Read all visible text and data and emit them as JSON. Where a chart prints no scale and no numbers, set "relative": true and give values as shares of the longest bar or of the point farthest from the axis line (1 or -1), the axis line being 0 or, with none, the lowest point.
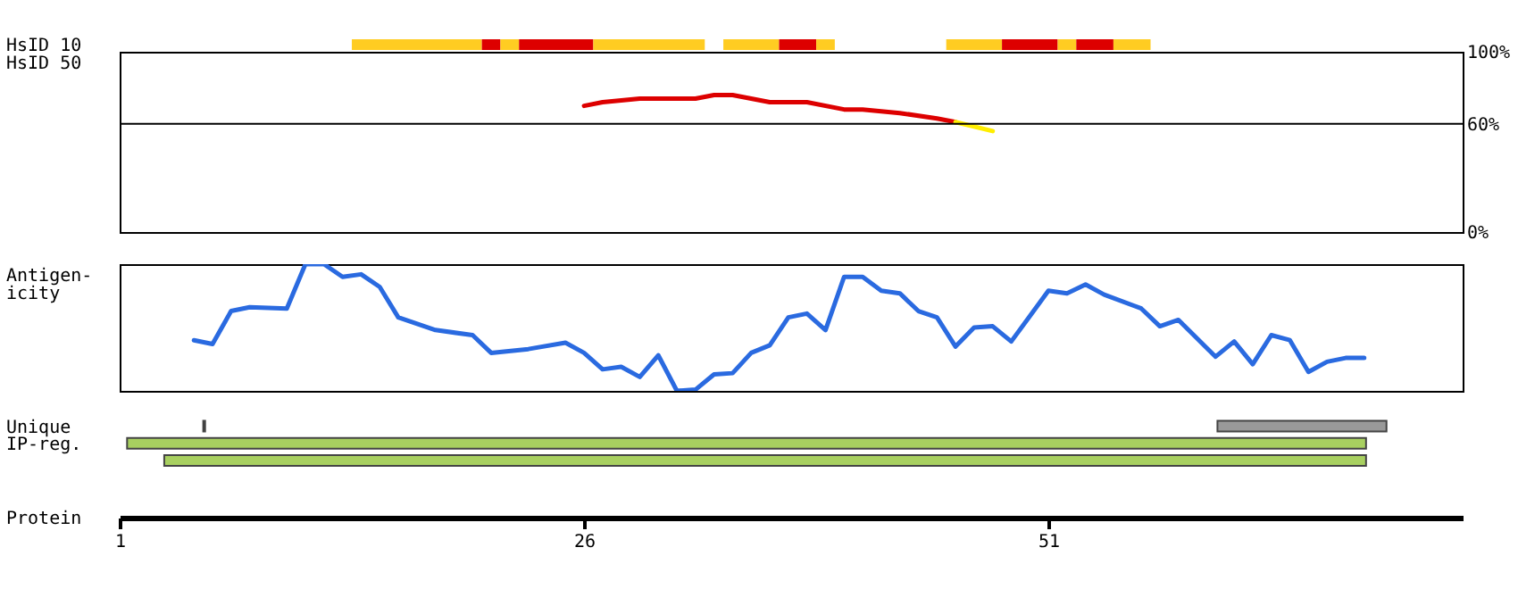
{
  "chart_data": [
    {
      "type": "line",
      "ylabel": "HsID 50",
      "xlim": [
        1,
        73.3
      ],
      "ylim": [
        0,
        100
      ],
      "yticks": [
        {
          "value": 0,
          "label": "0%"
        },
        {
          "value": 60,
          "label": "60%"
        },
        {
          "value": 100,
          "label": "100%"
        }
      ],
      "tick_labels": "y",
      "ref_lines": [
        {
          "axis": "y",
          "value": 60
        }
      ],
      "series": [
        {
          "color": "#dd0000",
          "x": [
            26,
            27,
            29,
            32,
            33,
            34,
            36,
            38,
            40,
            41,
            43,
            45,
            46
          ],
          "values": [
            70,
            72,
            74,
            74,
            76,
            76,
            72,
            72,
            68,
            68,
            66,
            63,
            61
          ]
        },
        {
          "color": "#ffee00",
          "x": [
            46,
            48
          ],
          "values": [
            61,
            56
          ]
        }
      ]
    },
    {
      "type": "line",
      "relative": true,
      "ylabel": "Antigen-\nicity",
      "xlim": [
        1,
        73.3
      ],
      "tick_labels": false,
      "x": [
        5,
        6,
        7,
        8,
        10,
        11,
        12,
        13,
        14,
        15,
        16,
        18,
        20,
        21,
        23,
        25,
        26,
        27,
        28,
        29,
        30,
        31,
        32,
        33,
        34,
        35,
        36,
        37,
        38,
        39,
        40,
        41,
        42,
        43,
        44,
        45,
        46,
        47,
        48,
        49,
        50,
        51,
        52,
        53,
        54,
        56,
        57,
        58,
        60,
        61,
        62,
        63,
        64,
        65,
        66,
        67,
        68
      ],
      "series": [
        {
          "color": "#2a6ae0",
          "values": [
            0.4,
            0.37,
            0.63,
            0.66,
            0.65,
            1,
            1,
            0.9,
            0.92,
            0.82,
            0.58,
            0.48,
            0.44,
            0.3,
            0.33,
            0.38,
            0.3,
            0.17,
            0.19,
            0.11,
            0.28,
            0,
            0.01,
            0.13,
            0.14,
            0.3,
            0.36,
            0.58,
            0.61,
            0.48,
            0.9,
            0.9,
            0.79,
            0.77,
            0.63,
            0.58,
            0.35,
            0.5,
            0.51,
            0.39,
            0.59,
            0.79,
            0.77,
            0.84,
            0.76,
            0.65,
            0.51,
            0.56,
            0.27,
            0.39,
            0.21,
            0.44,
            0.4,
            0.15,
            0.23,
            0.26,
            0.26
          ]
        }
      ]
    },
    {
      "type": "bar",
      "orientation": "horizontal",
      "categories": [
        "HsID 10",
        "Unique",
        "IP-reg."
      ],
      "xlabel": "Protein",
      "xlim": [
        1,
        73.3
      ],
      "xticks": [
        1,
        26,
        51
      ],
      "series": [
        {
          "color": "#ffcc22",
          "base": [
            13.5,
            null,
            null
          ],
          "values": [
            7,
            null,
            null
          ]
        },
        {
          "color": "#dd0000",
          "base": [
            20.5,
            null,
            null
          ],
          "values": [
            1,
            null,
            null
          ]
        },
        {
          "color": "#ffcc22",
          "base": [
            21.5,
            null,
            null
          ],
          "values": [
            1,
            null,
            null
          ]
        },
        {
          "color": "#dd0000",
          "base": [
            22.5,
            null,
            null
          ],
          "values": [
            4,
            null,
            null
          ]
        },
        {
          "color": "#ffcc22",
          "base": [
            26.5,
            null,
            null
          ],
          "values": [
            6,
            null,
            null
          ]
        },
        {
          "color": "#ffcc22",
          "base": [
            33.5,
            null,
            null
          ],
          "values": [
            3,
            null,
            null
          ]
        },
        {
          "color": "#dd0000",
          "base": [
            36.5,
            null,
            null
          ],
          "values": [
            2,
            null,
            null
          ]
        },
        {
          "color": "#ffcc22",
          "base": [
            38.5,
            null,
            null
          ],
          "values": [
            1,
            null,
            null
          ]
        },
        {
          "color": "#ffcc22",
          "base": [
            45.5,
            null,
            null
          ],
          "values": [
            3,
            null,
            null
          ]
        },
        {
          "color": "#dd0000",
          "base": [
            48.5,
            null,
            null
          ],
          "values": [
            3,
            null,
            null
          ]
        },
        {
          "color": "#ffcc22",
          "base": [
            51.5,
            null,
            null
          ],
          "values": [
            1,
            null,
            null
          ]
        },
        {
          "color": "#dd0000",
          "base": [
            52.5,
            null,
            null
          ],
          "values": [
            2,
            null,
            null
          ]
        },
        {
          "color": "#ffcc22",
          "base": [
            54.5,
            null,
            null
          ],
          "values": [
            2,
            null,
            null
          ]
        },
        {
          "color": "#999999",
          "base": [
            null,
            60.1,
            null
          ],
          "values": [
            null,
            9.1,
            null
          ]
        },
        {
          "color": "#000000",
          "base": [
            null,
            5.5,
            null
          ],
          "values": [
            null,
            0.1,
            null
          ]
        },
        {
          "color": "#a8d060",
          "base": [
            null,
            null,
            1.4
          ],
          "values": [
            null,
            null,
            66.7
          ]
        },
        {
          "color": "#a8d060",
          "base": [
            null,
            null,
            3.4
          ],
          "values": [
            null,
            null,
            64.7
          ]
        }
      ]
    }
  ]
}
